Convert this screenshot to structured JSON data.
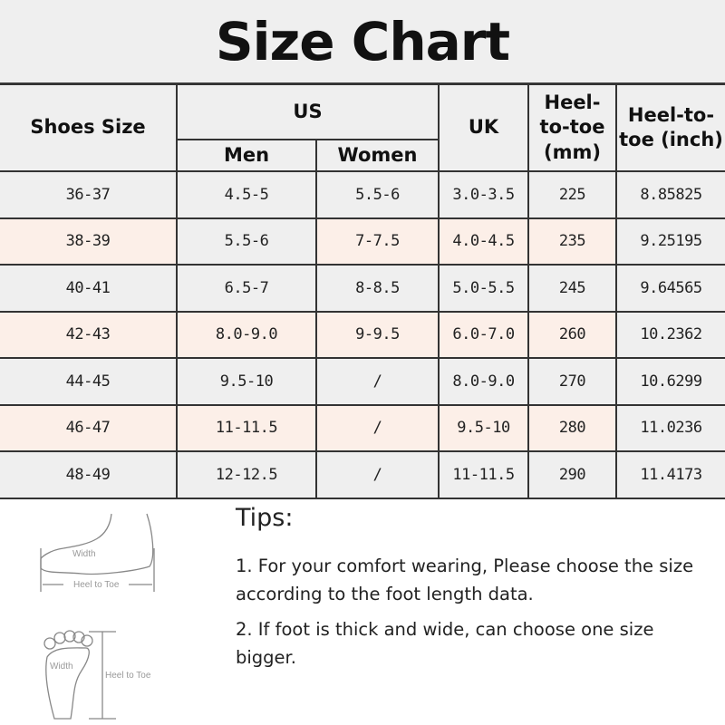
{
  "title": "Size Chart",
  "headers": {
    "shoes_size": "Shoes Size",
    "us": "US",
    "men": "Men",
    "women": "Women",
    "uk": "UK",
    "heel_mm": "Heel-to-toe (mm)",
    "heel_inch": "Heel-to-toe (inch)"
  },
  "colors": {
    "row_gray": "#efefef",
    "row_pink": "#fcefe8"
  },
  "rows": [
    {
      "cells": [
        "36-37",
        "4.5-5",
        "5.5-6",
        "3.0-3.5",
        "225",
        "8.85825"
      ],
      "pink": [
        false,
        false,
        false,
        false,
        false,
        false
      ]
    },
    {
      "cells": [
        "38-39",
        "5.5-6",
        "7-7.5",
        "4.0-4.5",
        "235",
        "9.25195"
      ],
      "pink": [
        true,
        false,
        true,
        true,
        true,
        false
      ]
    },
    {
      "cells": [
        "40-41",
        "6.5-7",
        "8-8.5",
        "5.0-5.5",
        "245",
        "9.64565"
      ],
      "pink": [
        false,
        false,
        false,
        false,
        false,
        false
      ]
    },
    {
      "cells": [
        "42-43",
        "8.0-9.0",
        "9-9.5",
        "6.0-7.0",
        "260",
        "10.2362"
      ],
      "pink": [
        true,
        true,
        true,
        true,
        true,
        false
      ]
    },
    {
      "cells": [
        "44-45",
        "9.5-10",
        "/",
        "8.0-9.0",
        "270",
        "10.6299"
      ],
      "pink": [
        false,
        false,
        false,
        false,
        false,
        false
      ]
    },
    {
      "cells": [
        "46-47",
        "11-11.5",
        "/",
        "9.5-10",
        "280",
        "11.0236"
      ],
      "pink": [
        true,
        true,
        true,
        true,
        true,
        false
      ]
    },
    {
      "cells": [
        "48-49",
        "12-12.5",
        "/",
        "11-11.5",
        "290",
        "11.4173"
      ],
      "pink": [
        false,
        false,
        false,
        false,
        false,
        false
      ]
    }
  ],
  "diagram": {
    "side_width": "Width",
    "side_length": "Heel to Toe",
    "top_width": "Width",
    "top_length": "Heel to Toe"
  },
  "tips": {
    "heading": "Tips:",
    "items": [
      "1. For your comfort wearing, Please choose the size according to the foot length data.",
      "2. If foot is thick and wide, can choose one size bigger."
    ]
  }
}
